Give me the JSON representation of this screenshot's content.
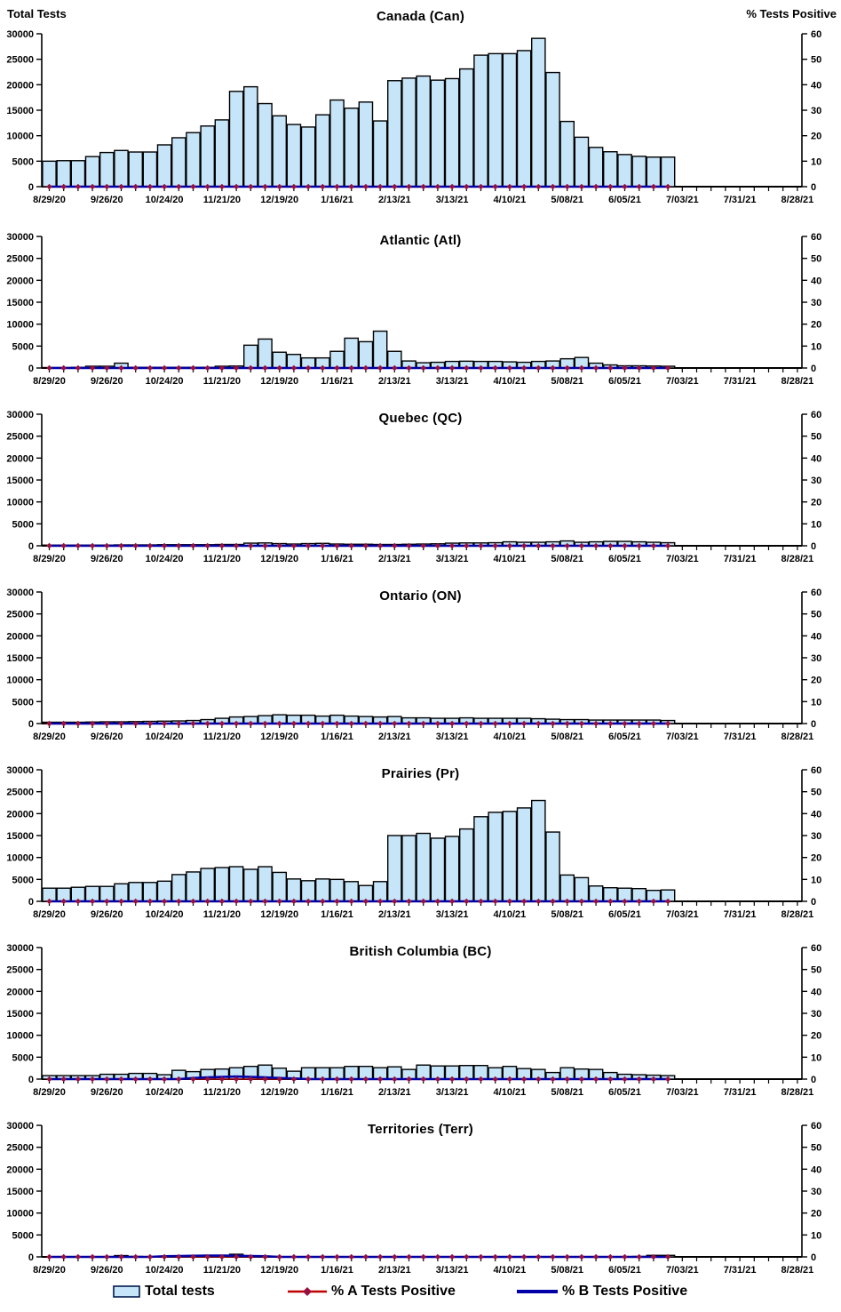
{
  "header": {
    "left_axis_title": "Total Tests",
    "right_axis_title": "% Tests Positive"
  },
  "axes": {
    "left_max": 30000,
    "right_max": 60,
    "left_ticks": [
      "30000",
      "25000",
      "20000",
      "15000",
      "10000",
      "5000",
      "0"
    ],
    "right_ticks": [
      "60",
      "50",
      "40",
      "30",
      "20",
      "10",
      "0"
    ],
    "x_tick_labels": [
      "8/29/20",
      "9/26/20",
      "10/24/20",
      "11/21/20",
      "12/19/20",
      "1/16/21",
      "2/13/21",
      "3/13/21",
      "4/10/21",
      "5/08/21",
      "6/05/21",
      "7/03/21",
      "7/31/21",
      "8/28/21"
    ],
    "weeks_per_label": 4,
    "total_week_slots": 53
  },
  "colors": {
    "bar_fill": "#C7E5F8",
    "bar_border": "#000000",
    "line_a": "#C00000",
    "marker_a": "#98103C",
    "line_b": "#0000A8",
    "axis": "#000000"
  },
  "legend": {
    "items": [
      {
        "label": "Total tests",
        "swatch": "bar"
      },
      {
        "label": "% A Tests Positive",
        "swatch": "red-line-diamond"
      },
      {
        "label": "% B Tests Positive",
        "swatch": "blue-line"
      }
    ]
  },
  "chart_data": [
    {
      "type": "bar",
      "title": "Canada (Can)",
      "ylabel_left": "Total Tests",
      "ylabel_right": "% Tests Positive",
      "ylim_left": [
        0,
        30000
      ],
      "ylim_right": [
        0,
        60
      ],
      "total_tests_weekly": [
        5000,
        5100,
        5100,
        5900,
        6700,
        7100,
        6800,
        6800,
        8200,
        9600,
        10600,
        11900,
        13100,
        18700,
        19600,
        16300,
        13900,
        12200,
        11700,
        14100,
        17000,
        15400,
        16600,
        12900,
        20800,
        21300,
        21700,
        20900,
        21200,
        23100,
        25800,
        26100,
        26100,
        26700,
        29100,
        22400,
        12800,
        9700,
        7700,
        6850,
        6300,
        5950,
        5800,
        5800
      ],
      "pct_a_weekly": [
        0,
        0,
        0,
        0,
        0,
        0,
        0,
        0,
        0,
        0,
        0,
        0,
        0,
        0,
        0,
        0,
        0,
        0,
        0,
        0,
        0,
        0,
        0,
        0,
        0,
        0,
        0,
        0,
        0,
        0,
        0,
        0,
        0,
        0,
        0,
        0,
        0,
        0,
        0,
        0,
        0,
        0,
        0,
        0
      ],
      "pct_b_weekly": [
        0,
        0,
        0,
        0,
        0,
        0,
        0,
        0,
        0,
        0,
        0,
        0,
        0,
        0,
        0,
        0,
        0,
        0,
        0,
        0,
        0,
        0,
        0,
        0,
        0,
        0,
        0,
        0,
        0,
        0,
        0,
        0,
        0,
        0,
        0,
        0,
        0,
        0,
        0,
        0,
        0,
        0,
        0,
        0
      ]
    },
    {
      "type": "bar",
      "title": "Atlantic (Atl)",
      "ylim_left": [
        0,
        30000
      ],
      "ylim_right": [
        0,
        60
      ],
      "total_tests_weekly": [
        100,
        100,
        150,
        400,
        400,
        1100,
        150,
        150,
        150,
        150,
        150,
        150,
        400,
        450,
        5200,
        6600,
        3600,
        3100,
        2300,
        2300,
        3800,
        6800,
        6000,
        8400,
        3800,
        1600,
        1200,
        1300,
        1500,
        1550,
        1500,
        1500,
        1400,
        1300,
        1500,
        1600,
        2100,
        2400,
        1100,
        700,
        500,
        500,
        450,
        400
      ],
      "pct_a_weekly": [
        0,
        0,
        0,
        0,
        0,
        0,
        0,
        0,
        0,
        0,
        0,
        0,
        0,
        0,
        0,
        0,
        0,
        0,
        0,
        0,
        0,
        0,
        0,
        0,
        0,
        0,
        0,
        0,
        0,
        0,
        0,
        0,
        0,
        0,
        0,
        0,
        0,
        0,
        0,
        0,
        0,
        0,
        0,
        0
      ],
      "pct_b_weekly": [
        0,
        0,
        0,
        0,
        0,
        0,
        0,
        0,
        0,
        0,
        0,
        0,
        0,
        0,
        0,
        0,
        0,
        0,
        0,
        0,
        0,
        0,
        0,
        0,
        0,
        0,
        0,
        0,
        0,
        0,
        0,
        0,
        0,
        0,
        0,
        0,
        0,
        0,
        0,
        0,
        0,
        0,
        0,
        0
      ]
    },
    {
      "type": "bar",
      "title": "Quebec (QC)",
      "ylim_left": [
        0,
        30000
      ],
      "ylim_right": [
        0,
        60
      ],
      "total_tests_weekly": [
        150,
        150,
        150,
        150,
        150,
        200,
        200,
        200,
        250,
        250,
        250,
        250,
        300,
        300,
        600,
        650,
        500,
        400,
        500,
        550,
        400,
        350,
        350,
        300,
        300,
        350,
        400,
        450,
        600,
        650,
        650,
        700,
        900,
        800,
        800,
        900,
        1100,
        800,
        900,
        1000,
        1000,
        900,
        800,
        700
      ],
      "pct_a_weekly": [
        0,
        0,
        0,
        0,
        0,
        0,
        0,
        0,
        0,
        0,
        0,
        0,
        0,
        0,
        0,
        0,
        0,
        0,
        0,
        0,
        0,
        0,
        0,
        0,
        0,
        0,
        0,
        0,
        0,
        0,
        0,
        0,
        0,
        0,
        0,
        0,
        0,
        0,
        0,
        0,
        0,
        0,
        0,
        0
      ],
      "pct_b_weekly": [
        0,
        0,
        0,
        0,
        0,
        0,
        0,
        0,
        0,
        0,
        0,
        0,
        0,
        0,
        0,
        0,
        0,
        0,
        0,
        0,
        0,
        0,
        0,
        0,
        0,
        0,
        0,
        0,
        0,
        0,
        0,
        0,
        0,
        0,
        0,
        0,
        0,
        0,
        0,
        0,
        0,
        0,
        0,
        0
      ]
    },
    {
      "type": "bar",
      "title": "Ontario (ON)",
      "ylim_left": [
        0,
        30000
      ],
      "ylim_right": [
        0,
        60
      ],
      "total_tests_weekly": [
        300,
        300,
        300,
        350,
        400,
        400,
        450,
        500,
        550,
        600,
        700,
        900,
        1200,
        1500,
        1600,
        1800,
        2000,
        1900,
        1900,
        1700,
        1900,
        1700,
        1600,
        1500,
        1600,
        1300,
        1300,
        1200,
        1200,
        1300,
        1200,
        1200,
        1200,
        1200,
        1100,
        1000,
        900,
        900,
        800,
        800,
        800,
        800,
        800,
        700
      ],
      "pct_a_weekly": [
        0,
        0,
        0,
        0,
        0,
        0,
        0,
        0,
        0,
        0,
        0,
        0,
        0,
        0,
        0,
        0,
        0,
        0,
        0,
        0,
        0,
        0,
        0,
        0,
        0,
        0,
        0,
        0,
        0,
        0,
        0,
        0,
        0,
        0,
        0,
        0,
        0,
        0,
        0,
        0,
        0,
        0,
        0,
        0
      ],
      "pct_b_weekly": [
        0,
        0,
        0,
        0,
        0,
        0,
        0,
        0,
        0,
        0,
        0,
        0,
        0,
        0,
        0,
        0,
        0,
        0,
        0,
        0,
        0,
        0,
        0,
        0,
        0,
        0,
        0,
        0,
        0,
        0,
        0,
        0,
        0,
        0,
        0,
        0,
        0,
        0,
        0,
        0,
        0,
        0,
        0,
        0
      ]
    },
    {
      "type": "bar",
      "title": "Prairies (Pr)",
      "ylim_left": [
        0,
        30000
      ],
      "ylim_right": [
        0,
        60
      ],
      "total_tests_weekly": [
        3000,
        3000,
        3200,
        3400,
        3400,
        4000,
        4300,
        4300,
        4600,
        6100,
        6700,
        7500,
        7700,
        7900,
        7300,
        7900,
        6600,
        5100,
        4700,
        5100,
        5000,
        4500,
        3600,
        4500,
        15000,
        15000,
        15500,
        14400,
        14800,
        16500,
        19300,
        20300,
        20500,
        21300,
        23000,
        15800,
        6000,
        5400,
        3500,
        3100,
        3000,
        2900,
        2500,
        2600
      ],
      "pct_a_weekly": [
        0,
        0,
        0,
        0,
        0,
        0,
        0,
        0,
        0,
        0,
        0,
        0,
        0,
        0,
        0,
        0,
        0,
        0,
        0,
        0,
        0,
        0,
        0,
        0,
        0,
        0,
        0,
        0,
        0,
        0,
        0,
        0,
        0,
        0,
        0,
        0,
        0,
        0,
        0,
        0,
        0,
        0,
        0,
        0
      ],
      "pct_b_weekly": [
        0,
        0,
        0,
        0,
        0,
        0,
        0,
        0,
        0,
        0,
        0,
        0,
        0,
        0,
        0,
        0,
        0,
        0,
        0,
        0,
        0,
        0,
        0,
        0,
        0,
        0,
        0,
        0,
        0,
        0,
        0,
        0,
        0,
        0,
        0,
        0,
        0,
        0,
        0,
        0,
        0,
        0,
        0,
        0
      ]
    },
    {
      "type": "bar",
      "title": "British Columbia (BC)",
      "ylim_left": [
        0,
        30000
      ],
      "ylim_right": [
        0,
        60
      ],
      "total_tests_weekly": [
        800,
        800,
        800,
        800,
        1100,
        1100,
        1300,
        1300,
        1000,
        2000,
        1700,
        2200,
        2300,
        2600,
        2900,
        3200,
        2500,
        1800,
        2600,
        2600,
        2600,
        2900,
        2900,
        2600,
        2800,
        2200,
        3200,
        3000,
        3000,
        3100,
        3100,
        2600,
        2900,
        2400,
        2200,
        1500,
        2600,
        2300,
        2200,
        1500,
        1100,
        1000,
        900,
        800
      ],
      "pct_a_weekly": [
        0,
        0,
        0,
        0,
        0,
        0,
        0,
        0,
        0,
        0,
        0,
        0,
        0,
        0,
        0,
        0,
        0,
        0,
        0,
        0,
        0,
        0,
        0,
        0,
        0,
        0,
        0,
        0,
        0,
        0,
        0,
        0,
        0,
        0,
        0,
        0,
        0,
        0,
        0,
        0,
        0,
        0,
        0,
        0
      ],
      "pct_b_weekly": [
        0,
        0,
        0,
        0,
        0,
        0,
        0,
        0,
        0,
        0,
        0.5,
        0.8,
        1,
        1.2,
        1,
        0.8,
        0.5,
        0.3,
        0,
        0,
        0,
        0,
        0,
        0,
        0,
        0,
        0,
        0,
        0,
        0,
        0,
        0,
        0,
        0,
        0,
        0,
        0,
        0,
        0,
        0,
        0,
        0,
        0,
        0
      ]
    },
    {
      "type": "bar",
      "title": "Territories (Terr)",
      "ylim_left": [
        0,
        30000
      ],
      "ylim_right": [
        0,
        60
      ],
      "total_tests_weekly": [
        50,
        50,
        50,
        50,
        50,
        300,
        100,
        50,
        50,
        50,
        50,
        50,
        100,
        600,
        100,
        50,
        50,
        50,
        50,
        50,
        50,
        50,
        50,
        50,
        50,
        50,
        50,
        50,
        50,
        50,
        50,
        50,
        50,
        50,
        50,
        50,
        50,
        50,
        50,
        50,
        50,
        100,
        350,
        350
      ],
      "pct_a_weekly": [
        0,
        0,
        0,
        0,
        0,
        0,
        0,
        0,
        0,
        0,
        0,
        0,
        0,
        0,
        0,
        0,
        0,
        0,
        0,
        0,
        0,
        0,
        0,
        0,
        0,
        0,
        0,
        0,
        0,
        0,
        0,
        0,
        0,
        0,
        0,
        0,
        0,
        0,
        0,
        0,
        0,
        0,
        0,
        0
      ],
      "pct_b_weekly": [
        0,
        0,
        0,
        0,
        0,
        0,
        0,
        0,
        0.3,
        0.4,
        0.5,
        0.6,
        0.6,
        0.5,
        0.4,
        0.3,
        0,
        0,
        0,
        0,
        0,
        0,
        0,
        0,
        0,
        0,
        0,
        0,
        0,
        0,
        0,
        0,
        0,
        0,
        0,
        0,
        0,
        0,
        0,
        0,
        0,
        0,
        0,
        0
      ]
    }
  ]
}
